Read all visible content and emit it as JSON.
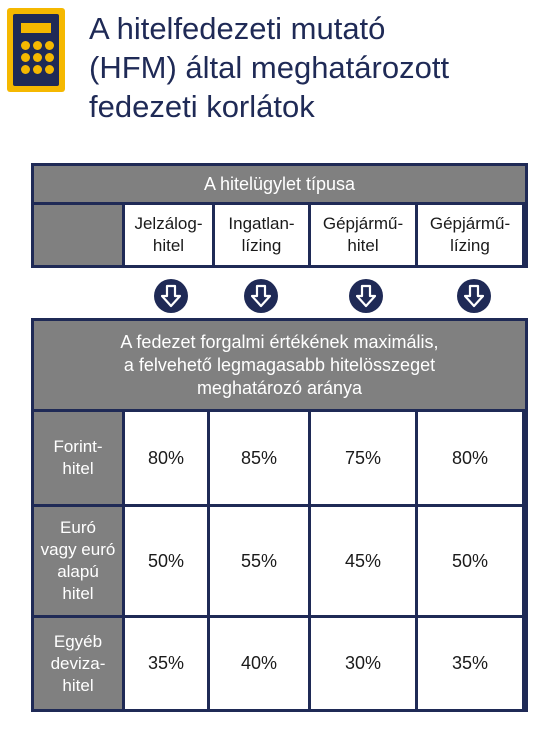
{
  "header": {
    "icon": "calculator-icon",
    "title_lines": [
      "A hitelfedezeti mutató",
      "(HFM) által meghatározott",
      "fedezeti korlátok"
    ]
  },
  "colors": {
    "navy": "#1f2a56",
    "gray": "#808080",
    "yellow": "#f5b800"
  },
  "loan_types": {
    "heading": "A hitelügylet típusa",
    "columns": [
      {
        "line1": "Jelzálog-",
        "line2": "hitel"
      },
      {
        "line1": "Ingatlan-",
        "line2": "lízing"
      },
      {
        "line1": "Gépjármű-",
        "line2": "hitel"
      },
      {
        "line1": "Gépjármű-",
        "line2": "lízing"
      }
    ],
    "arrow_icon": "arrow-down-icon"
  },
  "ratios": {
    "heading_lines": [
      "A fedezet forgalmi értékének maximális,",
      "a felvehető legmagasabb hitelösszeget",
      "meghatározó aránya"
    ],
    "rows": [
      {
        "label_lines": [
          "Forint-",
          "hitel"
        ],
        "values": [
          "80%",
          "85%",
          "75%",
          "80%"
        ]
      },
      {
        "label_lines": [
          "Euró",
          "vagy euró",
          "alapú",
          "hitel"
        ],
        "values": [
          "50%",
          "55%",
          "45%",
          "50%"
        ]
      },
      {
        "label_lines": [
          "Egyéb",
          "deviza-",
          "hitel"
        ],
        "values": [
          "35%",
          "40%",
          "30%",
          "35%"
        ]
      }
    ]
  }
}
